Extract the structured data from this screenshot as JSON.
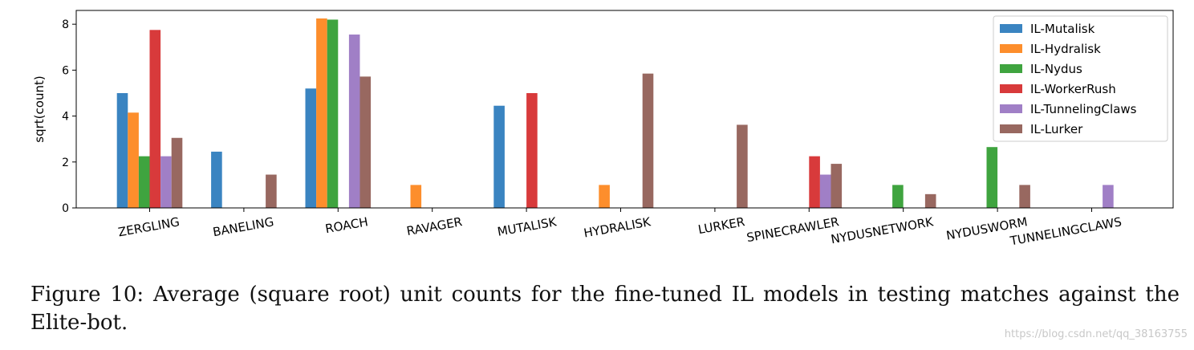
{
  "chart_data": {
    "type": "bar",
    "title": "",
    "xlabel": "",
    "ylabel": "sqrt(count)",
    "ylim": [
      0,
      8.6
    ],
    "yticks": [
      0,
      2,
      4,
      6,
      8
    ],
    "grid": false,
    "legend_position": "top-right",
    "categories": [
      "ZERGLING",
      "BANELING",
      "ROACH",
      "RAVAGER",
      "MUTALISK",
      "HYDRALISK",
      "LURKER",
      "SPINECRAWLER",
      "NYDUSNETWORK",
      "NYDUSWORM",
      "TUNNELINGCLAWS"
    ],
    "series": [
      {
        "name": "IL-Mutalisk",
        "color": "#3a84c1",
        "values": [
          5.0,
          2.45,
          5.2,
          0,
          4.45,
          0,
          0,
          0,
          0,
          0,
          0
        ]
      },
      {
        "name": "IL-Hydralisk",
        "color": "#fd8e2c",
        "values": [
          4.15,
          0,
          8.25,
          1.0,
          0,
          1.0,
          0,
          0,
          0,
          0,
          0
        ]
      },
      {
        "name": "IL-Nydus",
        "color": "#3fa43f",
        "values": [
          2.25,
          0,
          8.2,
          0,
          0,
          0,
          0,
          0,
          1.0,
          2.65,
          0
        ]
      },
      {
        "name": "IL-WorkerRush",
        "color": "#d83a3b",
        "values": [
          7.75,
          0,
          0,
          0,
          5.0,
          0,
          0,
          2.25,
          0,
          0,
          0
        ]
      },
      {
        "name": "IL-TunnelingClaws",
        "color": "#a07fc6",
        "values": [
          2.25,
          0,
          7.55,
          0,
          0,
          0,
          0,
          1.45,
          0,
          0,
          1.0
        ]
      },
      {
        "name": "IL-Lurker",
        "color": "#986860",
        "values": [
          3.05,
          1.45,
          5.72,
          0,
          0,
          5.85,
          3.62,
          1.92,
          0.6,
          1.0,
          0
        ]
      }
    ]
  },
  "caption": "Figure 10: Average (square root) unit counts for the fine-tuned IL models in testing matches against the Elite-bot.",
  "watermark": "https://blog.csdn.net/qq_38163755"
}
